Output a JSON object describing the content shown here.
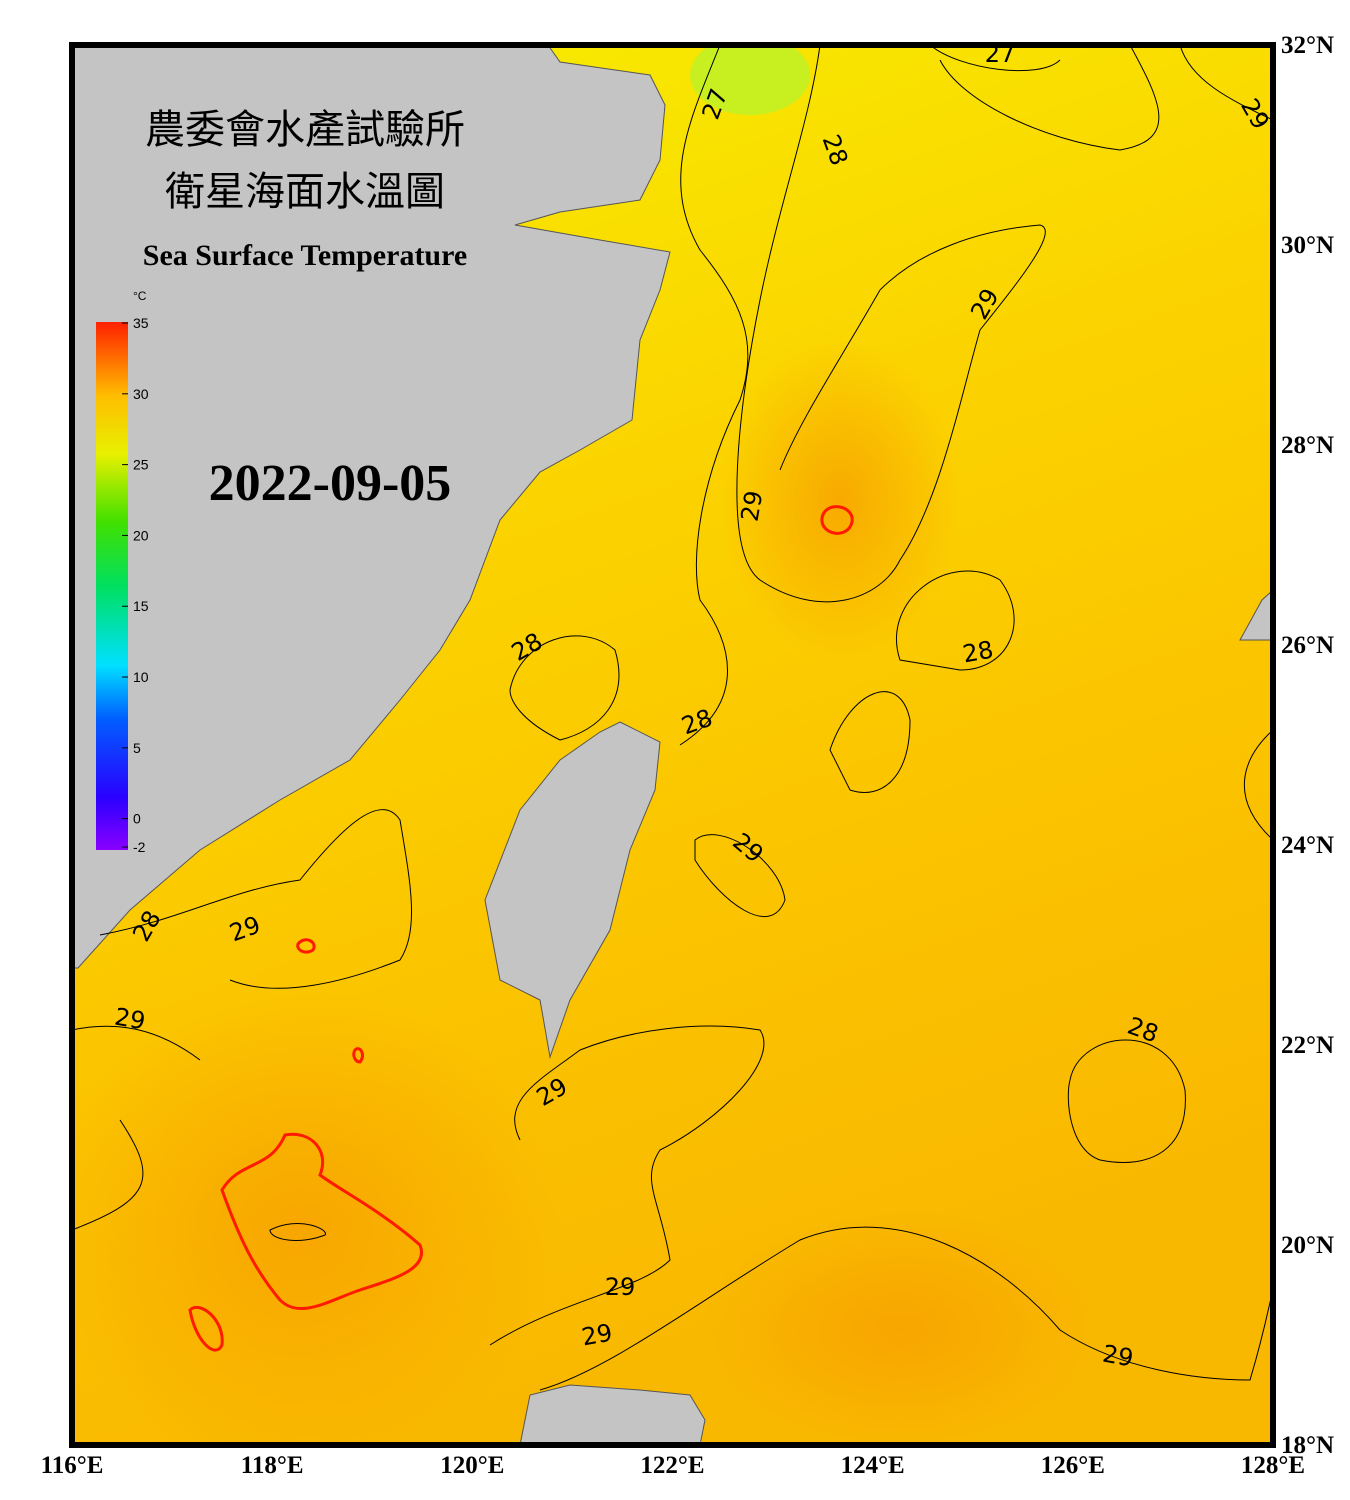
{
  "header": {
    "title_zh_1": "農委會水產試驗所",
    "title_zh_2": "衛星海面水溫圖",
    "title_en": "Sea Surface Temperature",
    "date": "2022-09-05"
  },
  "colorbar": {
    "unit": "°C",
    "range": [
      -2,
      35
    ],
    "ticks": [
      35,
      30,
      25,
      20,
      15,
      10,
      5,
      0,
      -2
    ]
  },
  "map": {
    "xlim": [
      116,
      128
    ],
    "ylim": [
      18,
      32
    ],
    "xticks": [
      {
        "value": 116,
        "label": "116°E"
      },
      {
        "value": 118,
        "label": "118°E"
      },
      {
        "value": 120,
        "label": "120°E"
      },
      {
        "value": 122,
        "label": "122°E"
      },
      {
        "value": 124,
        "label": "124°E"
      },
      {
        "value": 126,
        "label": "126°E"
      },
      {
        "value": 128,
        "label": "128°E"
      }
    ],
    "yticks": [
      {
        "value": 32,
        "label": "32°N"
      },
      {
        "value": 30,
        "label": "30°N"
      },
      {
        "value": 28,
        "label": "28°N"
      },
      {
        "value": 26,
        "label": "26°N"
      },
      {
        "value": 24,
        "label": "24°N"
      },
      {
        "value": 22,
        "label": "22°N"
      },
      {
        "value": 20,
        "label": "20°N"
      },
      {
        "value": 18,
        "label": "18°N"
      }
    ],
    "grid": true,
    "contour_labels": [
      27,
      27,
      28,
      29,
      29,
      29,
      28,
      28,
      28,
      29,
      29,
      28,
      29,
      29,
      28,
      29,
      29,
      29
    ]
  }
}
